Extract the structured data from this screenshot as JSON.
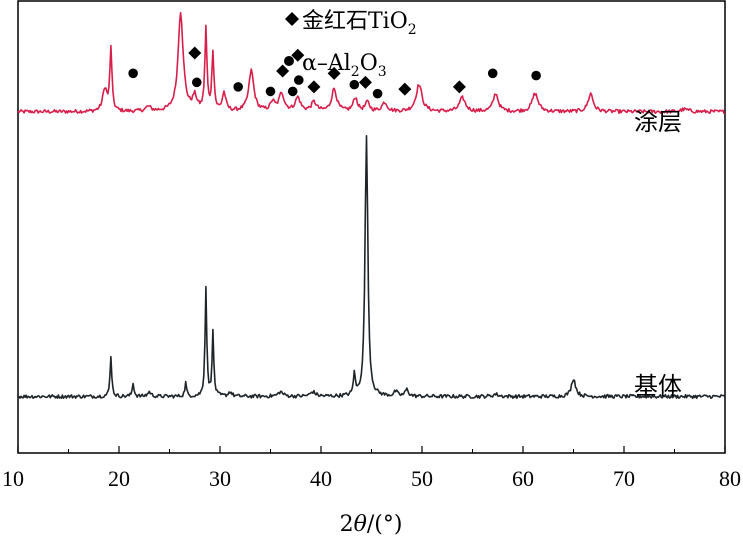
{
  "chart_data": {
    "type": "line",
    "xlabel_prefix": "2",
    "xlabel_theta": "θ",
    "xlabel_suffix": "/(°)",
    "xlim": [
      10,
      80
    ],
    "xticks": [
      10,
      20,
      30,
      40,
      50,
      60,
      70,
      80
    ],
    "ylim": [
      0,
      1
    ],
    "grid": false,
    "legend": {
      "placement": "top-center",
      "entries": [
        {
          "symbol": "diamond",
          "text": "金红石TiO",
          "sub": "2"
        },
        {
          "symbol": "circle",
          "text": "α–Al",
          "sub1": "2",
          "mid": "O",
          "sub2": "3"
        }
      ]
    },
    "series": [
      {
        "name": "涂层",
        "color": "#d81e4a",
        "baseline": 0.755,
        "noise": 0.004,
        "peaks": [
          [
            18.6,
            0.05,
            0.25
          ],
          [
            19.2,
            0.14,
            0.12
          ],
          [
            22.9,
            0.01,
            0.3
          ],
          [
            26.1,
            0.22,
            0.3
          ],
          [
            27.5,
            0.03,
            0.25
          ],
          [
            28.6,
            0.18,
            0.12
          ],
          [
            29.3,
            0.13,
            0.12
          ],
          [
            30.4,
            0.04,
            0.2
          ],
          [
            33.1,
            0.09,
            0.3
          ],
          [
            35.2,
            0.02,
            0.25
          ],
          [
            36.1,
            0.04,
            0.3
          ],
          [
            37.7,
            0.03,
            0.3
          ],
          [
            39.3,
            0.02,
            0.3
          ],
          [
            41.3,
            0.05,
            0.3
          ],
          [
            43.4,
            0.03,
            0.25
          ],
          [
            44.6,
            0.02,
            0.25
          ],
          [
            46.3,
            0.02,
            0.3
          ],
          [
            49.7,
            0.06,
            0.35
          ],
          [
            54.0,
            0.03,
            0.35
          ],
          [
            57.3,
            0.04,
            0.3
          ],
          [
            61.2,
            0.04,
            0.35
          ],
          [
            66.7,
            0.04,
            0.3
          ],
          [
            76.0,
            0.005,
            0.5
          ]
        ]
      },
      {
        "name": "基体",
        "color": "#1e2428",
        "baseline": 0.125,
        "noise": 0.004,
        "peaks": [
          [
            19.2,
            0.09,
            0.1
          ],
          [
            21.4,
            0.03,
            0.1
          ],
          [
            23.0,
            0.01,
            0.2
          ],
          [
            26.6,
            0.03,
            0.1
          ],
          [
            28.6,
            0.24,
            0.1
          ],
          [
            29.3,
            0.14,
            0.1
          ],
          [
            31.0,
            0.01,
            0.2
          ],
          [
            36.0,
            0.01,
            0.3
          ],
          [
            39.2,
            0.01,
            0.3
          ],
          [
            43.3,
            0.05,
            0.1
          ],
          [
            44.5,
            0.58,
            0.16
          ],
          [
            47.4,
            0.01,
            0.2
          ],
          [
            48.5,
            0.015,
            0.2
          ],
          [
            57.3,
            0.005,
            0.3
          ],
          [
            65.0,
            0.04,
            0.25
          ]
        ]
      }
    ],
    "markers": [
      {
        "symbol": "circle",
        "x": 21.4,
        "y": 0.84
      },
      {
        "symbol": "diamond",
        "x": 27.5,
        "y": 0.885
      },
      {
        "symbol": "circle",
        "x": 27.7,
        "y": 0.82
      },
      {
        "symbol": "circle",
        "x": 31.8,
        "y": 0.81
      },
      {
        "symbol": "circle",
        "x": 35.0,
        "y": 0.8
      },
      {
        "symbol": "diamond",
        "x": 36.2,
        "y": 0.845
      },
      {
        "symbol": "circle",
        "x": 37.2,
        "y": 0.8
      },
      {
        "symbol": "diamond",
        "x": 37.7,
        "y": 0.88
      },
      {
        "symbol": "circle",
        "x": 37.8,
        "y": 0.825
      },
      {
        "symbol": "diamond",
        "x": 39.3,
        "y": 0.81
      },
      {
        "symbol": "diamond",
        "x": 41.3,
        "y": 0.84
      },
      {
        "symbol": "circle",
        "x": 43.3,
        "y": 0.815
      },
      {
        "symbol": "diamond",
        "x": 44.4,
        "y": 0.82
      },
      {
        "symbol": "circle",
        "x": 45.6,
        "y": 0.795
      },
      {
        "symbol": "diamond",
        "x": 48.3,
        "y": 0.805
      },
      {
        "symbol": "diamond",
        "x": 53.7,
        "y": 0.81
      },
      {
        "symbol": "circle",
        "x": 57.0,
        "y": 0.84
      },
      {
        "symbol": "circle",
        "x": 61.3,
        "y": 0.835
      }
    ]
  }
}
